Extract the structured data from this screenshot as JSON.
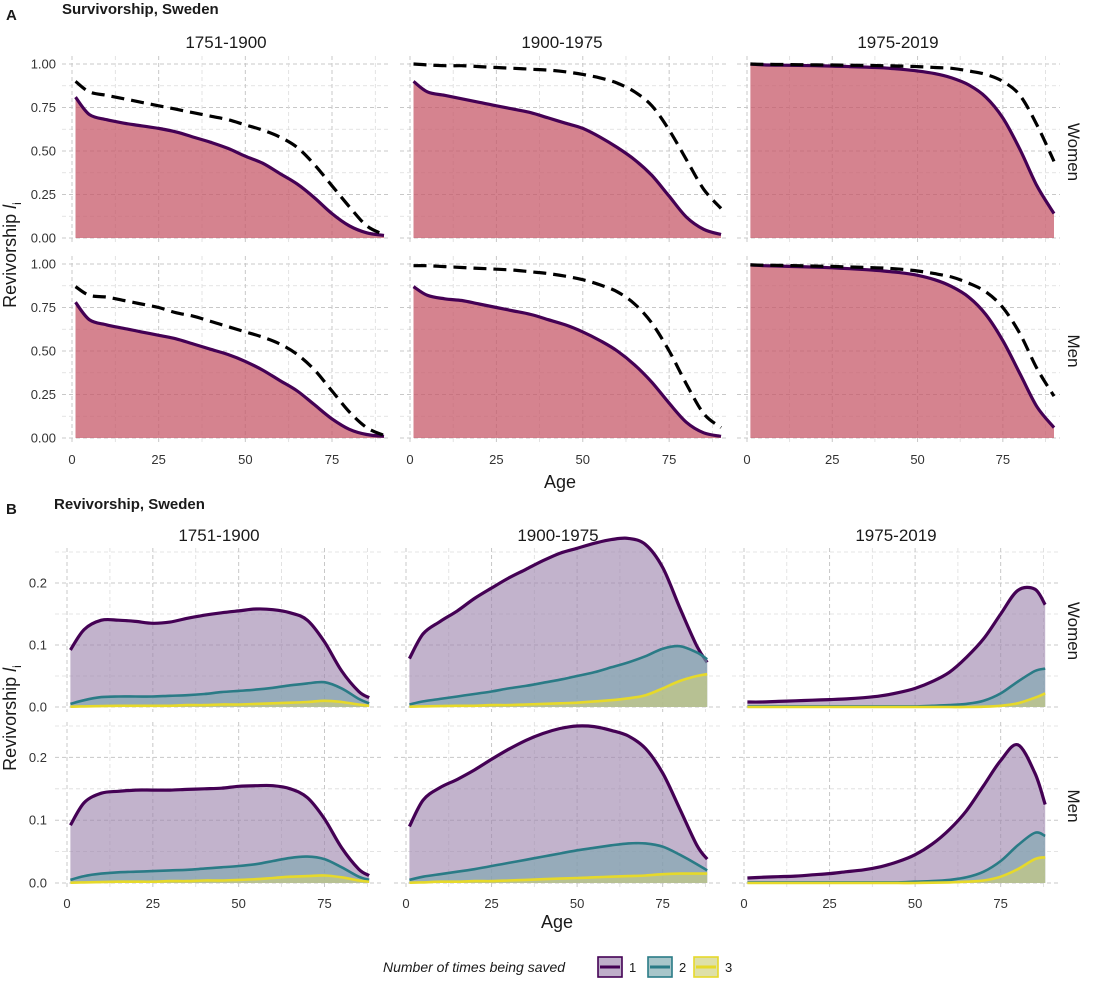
{
  "chart_data": [
    {
      "panel": "A",
      "title": "Survivorship, Sweden",
      "type": "area",
      "ylabel": "Revivorship",
      "ylabel_sub": "l",
      "ylabel_sub2": "i",
      "xlabel": "Age",
      "xlim": [
        0,
        90
      ],
      "ylim": [
        0,
        1.0
      ],
      "xticks": [
        0,
        25,
        50,
        75
      ],
      "yticks": [
        0.0,
        0.25,
        0.5,
        0.75,
        1.0
      ],
      "ytick_labels": [
        "0.00",
        "0.25",
        "0.50",
        "0.75",
        "1.00"
      ],
      "columns": [
        "1751-1900",
        "1900-1975",
        "1975-2019"
      ],
      "rows": [
        "Women",
        "Men"
      ],
      "grid": true,
      "colors": {
        "fill": "#c75a6a",
        "line": "#440154",
        "dashed": "#000000"
      },
      "x": [
        1,
        5,
        10,
        15,
        20,
        25,
        30,
        35,
        40,
        45,
        50,
        55,
        60,
        65,
        70,
        75,
        80,
        85,
        90
      ],
      "panels": [
        {
          "col": "1751-1900",
          "row": "Women",
          "solid": [
            0.81,
            0.71,
            0.68,
            0.66,
            0.645,
            0.63,
            0.61,
            0.58,
            0.55,
            0.515,
            0.47,
            0.43,
            0.37,
            0.31,
            0.23,
            0.14,
            0.07,
            0.03,
            0.015
          ],
          "dashed": [
            0.9,
            0.84,
            0.82,
            0.8,
            0.78,
            0.76,
            0.74,
            0.72,
            0.7,
            0.68,
            0.65,
            0.62,
            0.58,
            0.52,
            0.42,
            0.3,
            0.18,
            0.07,
            0.02
          ]
        },
        {
          "col": "1900-1975",
          "row": "Women",
          "solid": [
            0.9,
            0.84,
            0.82,
            0.8,
            0.78,
            0.76,
            0.74,
            0.72,
            0.69,
            0.66,
            0.63,
            0.58,
            0.52,
            0.45,
            0.36,
            0.24,
            0.12,
            0.05,
            0.02
          ],
          "dashed": [
            1.0,
            0.995,
            0.99,
            0.99,
            0.985,
            0.98,
            0.975,
            0.97,
            0.965,
            0.955,
            0.94,
            0.92,
            0.89,
            0.84,
            0.76,
            0.62,
            0.45,
            0.28,
            0.17
          ]
        },
        {
          "col": "1975-2019",
          "row": "Women",
          "solid": [
            1.0,
            0.995,
            0.993,
            0.992,
            0.99,
            0.988,
            0.985,
            0.982,
            0.978,
            0.97,
            0.96,
            0.945,
            0.92,
            0.88,
            0.81,
            0.69,
            0.51,
            0.3,
            0.14
          ],
          "dashed": [
            1.0,
            0.998,
            0.997,
            0.996,
            0.995,
            0.994,
            0.993,
            0.992,
            0.99,
            0.988,
            0.985,
            0.98,
            0.975,
            0.96,
            0.94,
            0.9,
            0.82,
            0.65,
            0.44
          ]
        },
        {
          "col": "1751-1900",
          "row": "Men",
          "solid": [
            0.78,
            0.68,
            0.65,
            0.63,
            0.61,
            0.59,
            0.57,
            0.54,
            0.51,
            0.48,
            0.44,
            0.39,
            0.33,
            0.27,
            0.19,
            0.11,
            0.05,
            0.02,
            0.01
          ],
          "dashed": [
            0.87,
            0.82,
            0.81,
            0.79,
            0.77,
            0.75,
            0.72,
            0.7,
            0.67,
            0.64,
            0.61,
            0.58,
            0.54,
            0.48,
            0.39,
            0.27,
            0.15,
            0.06,
            0.015
          ]
        },
        {
          "col": "1900-1975",
          "row": "Men",
          "solid": [
            0.87,
            0.82,
            0.8,
            0.79,
            0.77,
            0.75,
            0.73,
            0.71,
            0.68,
            0.65,
            0.61,
            0.56,
            0.5,
            0.42,
            0.32,
            0.2,
            0.09,
            0.03,
            0.01
          ],
          "dashed": [
            0.99,
            0.99,
            0.985,
            0.98,
            0.975,
            0.97,
            0.965,
            0.955,
            0.945,
            0.93,
            0.91,
            0.88,
            0.84,
            0.77,
            0.66,
            0.5,
            0.31,
            0.14,
            0.06
          ]
        },
        {
          "col": "1975-2019",
          "row": "Men",
          "solid": [
            0.995,
            0.99,
            0.988,
            0.985,
            0.982,
            0.978,
            0.973,
            0.967,
            0.96,
            0.95,
            0.935,
            0.91,
            0.87,
            0.81,
            0.71,
            0.56,
            0.37,
            0.18,
            0.06
          ],
          "dashed": [
            0.995,
            0.993,
            0.992,
            0.99,
            0.988,
            0.986,
            0.983,
            0.98,
            0.977,
            0.97,
            0.96,
            0.945,
            0.925,
            0.89,
            0.84,
            0.75,
            0.6,
            0.4,
            0.24
          ]
        }
      ]
    },
    {
      "panel": "B",
      "title": "Revivorship, Sweden",
      "type": "area",
      "ylabel": "Revivorship",
      "ylabel_sub": "l",
      "ylabel_sub2": "i",
      "xlabel": "Age",
      "xlim": [
        0,
        90
      ],
      "ylim": [
        0,
        0.25
      ],
      "xticks": [
        0,
        25,
        50,
        75
      ],
      "yticks": [
        0.0,
        0.1,
        0.2
      ],
      "ytick_labels": [
        "0.0",
        "0.1",
        "0.2"
      ],
      "columns": [
        "1751-1900",
        "1900-1975",
        "1975-2019"
      ],
      "rows": [
        "Women",
        "Men"
      ],
      "grid": true,
      "legend": {
        "title": "Number of times being saved",
        "position": "bottom",
        "items": [
          {
            "label": "1",
            "line": "#440154",
            "fill": "#9c84ad"
          },
          {
            "label": "2",
            "line": "#2a7b86",
            "fill": "#7aa7ae"
          },
          {
            "label": "3",
            "line": "#e6d92a",
            "fill": "#cccf7a"
          }
        ]
      },
      "x": [
        1,
        5,
        10,
        15,
        20,
        25,
        30,
        35,
        40,
        45,
        50,
        55,
        60,
        65,
        70,
        75,
        80,
        85,
        88
      ],
      "panels": [
        {
          "col": "1751-1900",
          "row": "Women",
          "series": [
            {
              "name": "1",
              "values": [
                0.092,
                0.125,
                0.14,
                0.14,
                0.138,
                0.135,
                0.137,
                0.143,
                0.148,
                0.152,
                0.155,
                0.158,
                0.157,
                0.152,
                0.14,
                0.105,
                0.058,
                0.025,
                0.015
              ]
            },
            {
              "name": "2",
              "values": [
                0.005,
                0.011,
                0.016,
                0.017,
                0.017,
                0.017,
                0.018,
                0.019,
                0.021,
                0.024,
                0.026,
                0.028,
                0.031,
                0.035,
                0.038,
                0.04,
                0.03,
                0.013,
                0.006
              ]
            },
            {
              "name": "3",
              "values": [
                0.0005,
                0.001,
                0.0015,
                0.002,
                0.002,
                0.002,
                0.002,
                0.003,
                0.003,
                0.004,
                0.004,
                0.005,
                0.006,
                0.007,
                0.008,
                0.01,
                0.008,
                0.004,
                0.002
              ]
            }
          ]
        },
        {
          "col": "1900-1975",
          "row": "Women",
          "series": [
            {
              "name": "1",
              "values": [
                0.078,
                0.118,
                0.138,
                0.155,
                0.175,
                0.192,
                0.208,
                0.222,
                0.236,
                0.248,
                0.256,
                0.264,
                0.27,
                0.272,
                0.262,
                0.225,
                0.16,
                0.098,
                0.072
              ]
            },
            {
              "name": "2",
              "values": [
                0.004,
                0.009,
                0.013,
                0.017,
                0.021,
                0.025,
                0.03,
                0.034,
                0.039,
                0.044,
                0.05,
                0.056,
                0.064,
                0.072,
                0.082,
                0.094,
                0.098,
                0.088,
                0.077
              ]
            },
            {
              "name": "3",
              "values": [
                0.0005,
                0.001,
                0.0015,
                0.002,
                0.002,
                0.003,
                0.003,
                0.004,
                0.005,
                0.006,
                0.007,
                0.009,
                0.011,
                0.014,
                0.019,
                0.03,
                0.042,
                0.05,
                0.053
              ]
            }
          ]
        },
        {
          "col": "1975-2019",
          "row": "Women",
          "series": [
            {
              "name": "1",
              "values": [
                0.008,
                0.008,
                0.009,
                0.01,
                0.011,
                0.012,
                0.013,
                0.015,
                0.018,
                0.023,
                0.03,
                0.041,
                0.056,
                0.08,
                0.11,
                0.15,
                0.188,
                0.19,
                0.165
              ]
            },
            {
              "name": "2",
              "values": [
                0.001,
                0.001,
                0.001,
                0.001,
                0.001,
                0.001,
                0.001,
                0.001,
                0.001,
                0.001,
                0.001,
                0.002,
                0.003,
                0.005,
                0.01,
                0.022,
                0.041,
                0.058,
                0.062
              ]
            },
            {
              "name": "3",
              "values": [
                0.0,
                0.0,
                0.0,
                0.0,
                0.0,
                0.0,
                0.0,
                0.0,
                0.0,
                0.0,
                0.0,
                0.0,
                0.0,
                0.0,
                0.0005,
                0.002,
                0.006,
                0.015,
                0.022
              ]
            }
          ]
        },
        {
          "col": "1751-1900",
          "row": "Men",
          "series": [
            {
              "name": "1",
              "values": [
                0.092,
                0.128,
                0.143,
                0.146,
                0.148,
                0.148,
                0.148,
                0.149,
                0.15,
                0.151,
                0.154,
                0.155,
                0.155,
                0.15,
                0.136,
                0.102,
                0.056,
                0.022,
                0.012
              ]
            },
            {
              "name": "2",
              "values": [
                0.005,
                0.011,
                0.015,
                0.017,
                0.018,
                0.019,
                0.02,
                0.021,
                0.023,
                0.025,
                0.027,
                0.03,
                0.035,
                0.04,
                0.042,
                0.038,
                0.025,
                0.01,
                0.005
              ]
            },
            {
              "name": "3",
              "values": [
                0.0005,
                0.001,
                0.0015,
                0.002,
                0.002,
                0.002,
                0.003,
                0.003,
                0.004,
                0.004,
                0.005,
                0.006,
                0.008,
                0.01,
                0.011,
                0.012,
                0.009,
                0.004,
                0.002
              ]
            }
          ]
        },
        {
          "col": "1900-1975",
          "row": "Men",
          "series": [
            {
              "name": "1",
              "values": [
                0.09,
                0.132,
                0.152,
                0.165,
                0.18,
                0.197,
                0.213,
                0.227,
                0.238,
                0.246,
                0.25,
                0.249,
                0.243,
                0.234,
                0.214,
                0.175,
                0.118,
                0.06,
                0.038
              ]
            },
            {
              "name": "2",
              "values": [
                0.005,
                0.01,
                0.014,
                0.018,
                0.022,
                0.027,
                0.032,
                0.037,
                0.042,
                0.047,
                0.052,
                0.056,
                0.06,
                0.063,
                0.063,
                0.058,
                0.045,
                0.03,
                0.02
              ]
            },
            {
              "name": "3",
              "values": [
                0.0005,
                0.001,
                0.002,
                0.002,
                0.003,
                0.003,
                0.004,
                0.005,
                0.006,
                0.007,
                0.008,
                0.009,
                0.01,
                0.011,
                0.012,
                0.014,
                0.015,
                0.015,
                0.015
              ]
            }
          ]
        },
        {
          "col": "1975-2019",
          "row": "Men",
          "series": [
            {
              "name": "1",
              "values": [
                0.008,
                0.009,
                0.01,
                0.011,
                0.013,
                0.015,
                0.018,
                0.021,
                0.026,
                0.034,
                0.045,
                0.062,
                0.085,
                0.115,
                0.155,
                0.195,
                0.22,
                0.175,
                0.125
              ]
            },
            {
              "name": "2",
              "values": [
                0.001,
                0.001,
                0.001,
                0.001,
                0.001,
                0.001,
                0.001,
                0.001,
                0.001,
                0.001,
                0.002,
                0.003,
                0.005,
                0.009,
                0.018,
                0.035,
                0.06,
                0.08,
                0.075
              ]
            },
            {
              "name": "3",
              "values": [
                0.0,
                0.0,
                0.0,
                0.0,
                0.0,
                0.0,
                0.0,
                0.0,
                0.0,
                0.0,
                0.0,
                0.0005,
                0.001,
                0.002,
                0.004,
                0.01,
                0.022,
                0.038,
                0.041
              ]
            }
          ]
        }
      ]
    }
  ]
}
